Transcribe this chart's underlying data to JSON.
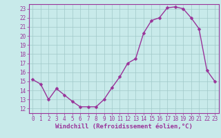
{
  "x": [
    0,
    1,
    2,
    3,
    4,
    5,
    6,
    7,
    8,
    9,
    10,
    11,
    12,
    13,
    14,
    15,
    16,
    17,
    18,
    19,
    20,
    21,
    22,
    23
  ],
  "y": [
    15.2,
    14.7,
    13.0,
    14.2,
    13.5,
    12.8,
    12.2,
    12.2,
    12.2,
    13.0,
    14.3,
    15.5,
    17.0,
    17.5,
    20.3,
    21.7,
    22.0,
    23.1,
    23.2,
    23.0,
    22.0,
    20.8,
    16.2,
    15.0
  ],
  "line_color": "#993399",
  "marker_color": "#993399",
  "bg_color": "#c8eaea",
  "grid_color": "#a0c8c8",
  "xlabel": "Windchill (Refroidissement éolien,°C)",
  "xlim": [
    -0.5,
    23.5
  ],
  "ylim": [
    11.5,
    23.5
  ],
  "yticks": [
    12,
    13,
    14,
    15,
    16,
    17,
    18,
    19,
    20,
    21,
    22,
    23
  ],
  "xticks": [
    0,
    1,
    2,
    3,
    4,
    5,
    6,
    7,
    8,
    9,
    10,
    11,
    12,
    13,
    14,
    15,
    16,
    17,
    18,
    19,
    20,
    21,
    22,
    23
  ],
  "xlabel_fontsize": 6.5,
  "tick_fontsize": 5.5,
  "line_width": 1.0,
  "marker_size": 2.5
}
